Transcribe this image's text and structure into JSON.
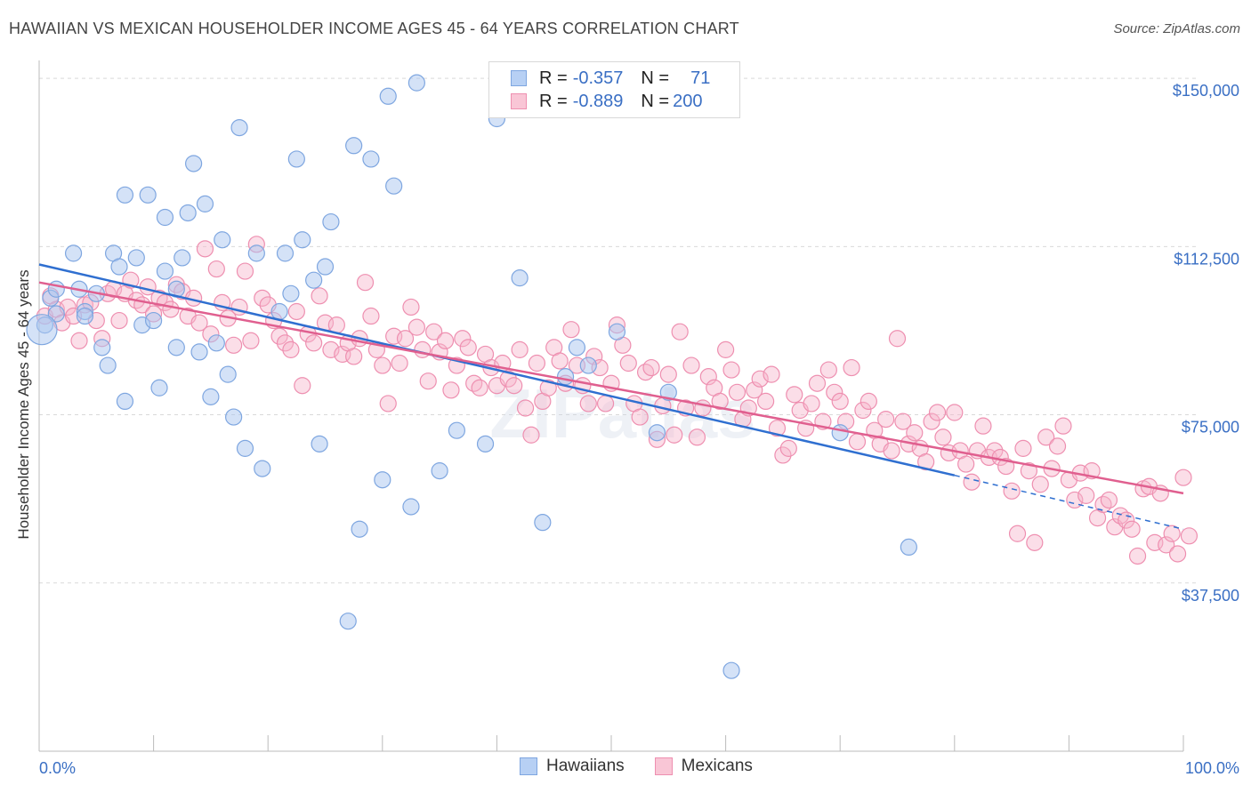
{
  "header": {
    "title": "HAWAIIAN VS MEXICAN HOUSEHOLDER INCOME AGES 45 - 64 YEARS CORRELATION CHART",
    "source": "Source: ZipAtlas.com"
  },
  "legend": {
    "hawaiians": {
      "r_label": "R = ",
      "r_value": "-0.357",
      "n_label": "N = ",
      "n_value": "71"
    },
    "mexicans": {
      "r_label": "R = ",
      "r_value": "-0.889",
      "n_label": "N = ",
      "n_value": "200"
    }
  },
  "watermark": "ZIPatlas",
  "colors": {
    "hawaiians_fill": "#a9c6f0",
    "hawaiians_stroke": "#7ea6e0",
    "hawaiians_line": "#2f6fd0",
    "mexicans_fill": "#f6b6cb",
    "mexicans_stroke": "#ee8fb0",
    "mexicans_line": "#e05f8f",
    "axis_label": "#3a6fc4",
    "grid": "#d9d9d9"
  },
  "chart_data": {
    "type": "scatter",
    "title": "HAWAIIAN VS MEXICAN HOUSEHOLDER INCOME AGES 45 - 64 YEARS CORRELATION CHART",
    "xlabel": "",
    "ylabel": "Householder Income Ages 45 - 64 years",
    "xlim": [
      0,
      100
    ],
    "ylim": [
      0,
      152000
    ],
    "x_tick_labels": [
      "0.0%",
      "100.0%"
    ],
    "y_ticks": [
      37500,
      75000,
      112500,
      150000
    ],
    "y_tick_labels": [
      "$37,500",
      "$75,000",
      "$112,500",
      "$150,000"
    ],
    "grid": true,
    "legend_position": "top-center",
    "series": [
      {
        "name": "Hawaiians",
        "r": -0.357,
        "n": 71,
        "trend": {
          "x": [
            0,
            80
          ],
          "y": [
            108500,
            61500
          ],
          "dashed_extension_to": [
            100,
            49500
          ]
        },
        "points": [
          [
            0.5,
            95000
          ],
          [
            1,
            101000
          ],
          [
            1.5,
            103000
          ],
          [
            1.5,
            97500
          ],
          [
            3,
            111000
          ],
          [
            3.5,
            103000
          ],
          [
            4,
            98000
          ],
          [
            4,
            97000
          ],
          [
            5,
            102000
          ],
          [
            5.5,
            90000
          ],
          [
            6,
            86000
          ],
          [
            6.5,
            111000
          ],
          [
            7,
            108000
          ],
          [
            7.5,
            124000
          ],
          [
            7.5,
            78000
          ],
          [
            8.5,
            110000
          ],
          [
            9,
            95000
          ],
          [
            9.5,
            124000
          ],
          [
            10,
            96000
          ],
          [
            10.5,
            81000
          ],
          [
            11,
            107000
          ],
          [
            11,
            119000
          ],
          [
            12,
            103000
          ],
          [
            12,
            90000
          ],
          [
            12.5,
            110000
          ],
          [
            13,
            120000
          ],
          [
            13.5,
            131000
          ],
          [
            14,
            89000
          ],
          [
            14.5,
            122000
          ],
          [
            15,
            79000
          ],
          [
            15.5,
            91000
          ],
          [
            16,
            114000
          ],
          [
            16.5,
            84000
          ],
          [
            17,
            74500
          ],
          [
            17.5,
            139000
          ],
          [
            18,
            67500
          ],
          [
            19,
            111000
          ],
          [
            19.5,
            63000
          ],
          [
            21,
            98000
          ],
          [
            21.5,
            111000
          ],
          [
            22,
            102000
          ],
          [
            22.5,
            132000
          ],
          [
            23,
            114000
          ],
          [
            24,
            105000
          ],
          [
            24.5,
            68500
          ],
          [
            25,
            108000
          ],
          [
            25.5,
            118000
          ],
          [
            27,
            29000
          ],
          [
            27.5,
            135000
          ],
          [
            28,
            49500
          ],
          [
            29,
            132000
          ],
          [
            30,
            60500
          ],
          [
            30.5,
            146000
          ],
          [
            31,
            126000
          ],
          [
            32.5,
            54500
          ],
          [
            33,
            149000
          ],
          [
            35,
            62500
          ],
          [
            36.5,
            71500
          ],
          [
            39,
            68500
          ],
          [
            40,
            141000
          ],
          [
            42,
            105500
          ],
          [
            44,
            51000
          ],
          [
            46,
            83500
          ],
          [
            47,
            90000
          ],
          [
            48,
            86000
          ],
          [
            50.5,
            93500
          ],
          [
            54,
            71000
          ],
          [
            55,
            80000
          ],
          [
            60.5,
            18000
          ],
          [
            70,
            71000
          ],
          [
            76,
            45500
          ]
        ]
      },
      {
        "name": "Mexicans",
        "r": -0.889,
        "n": 200,
        "trend": {
          "x": [
            0,
            100
          ],
          "y": [
            104500,
            57500
          ]
        },
        "points": [
          [
            0.5,
            97000
          ],
          [
            1,
            101500
          ],
          [
            1.5,
            98500
          ],
          [
            2,
            95500
          ],
          [
            2.5,
            99000
          ],
          [
            3,
            97000
          ],
          [
            3.5,
            91500
          ],
          [
            4,
            99500
          ],
          [
            4.5,
            100000
          ],
          [
            5,
            96000
          ],
          [
            5.5,
            92000
          ],
          [
            6,
            102000
          ],
          [
            6.5,
            103000
          ],
          [
            7,
            96000
          ],
          [
            7.5,
            102000
          ],
          [
            8,
            105000
          ],
          [
            8.5,
            100500
          ],
          [
            9,
            99500
          ],
          [
            9.5,
            103500
          ],
          [
            10,
            97500
          ],
          [
            10.5,
            101000
          ],
          [
            11,
            100000
          ],
          [
            11.5,
            98500
          ],
          [
            12,
            104000
          ],
          [
            12.5,
            102500
          ],
          [
            13,
            97000
          ],
          [
            13.5,
            101000
          ],
          [
            14,
            95500
          ],
          [
            14.5,
            112000
          ],
          [
            15,
            93000
          ],
          [
            15.5,
            107500
          ],
          [
            16,
            100000
          ],
          [
            16.5,
            96500
          ],
          [
            17,
            90500
          ],
          [
            17.5,
            99000
          ],
          [
            18,
            107000
          ],
          [
            18.5,
            91500
          ],
          [
            19,
            113000
          ],
          [
            19.5,
            101000
          ],
          [
            20,
            99500
          ],
          [
            20.5,
            96000
          ],
          [
            21,
            92500
          ],
          [
            21.5,
            91000
          ],
          [
            22,
            89500
          ],
          [
            22.5,
            98000
          ],
          [
            23,
            81500
          ],
          [
            23.5,
            93000
          ],
          [
            24,
            91000
          ],
          [
            24.5,
            101500
          ],
          [
            25,
            95500
          ],
          [
            25.5,
            89500
          ],
          [
            26,
            95000
          ],
          [
            26.5,
            88500
          ],
          [
            27,
            91000
          ],
          [
            27.5,
            88000
          ],
          [
            28,
            92000
          ],
          [
            28.5,
            104500
          ],
          [
            29,
            97000
          ],
          [
            29.5,
            89500
          ],
          [
            30,
            86000
          ],
          [
            30.5,
            77500
          ],
          [
            31,
            92500
          ],
          [
            31.5,
            86500
          ],
          [
            32,
            92000
          ],
          [
            32.5,
            99000
          ],
          [
            33,
            94500
          ],
          [
            33.5,
            89500
          ],
          [
            34,
            82500
          ],
          [
            34.5,
            93500
          ],
          [
            35,
            89000
          ],
          [
            35.5,
            91500
          ],
          [
            36,
            80500
          ],
          [
            36.5,
            86000
          ],
          [
            37,
            92000
          ],
          [
            37.5,
            90000
          ],
          [
            38,
            82000
          ],
          [
            38.5,
            81000
          ],
          [
            39,
            88500
          ],
          [
            39.5,
            85500
          ],
          [
            40,
            81500
          ],
          [
            40.5,
            86500
          ],
          [
            41,
            83000
          ],
          [
            41.5,
            81500
          ],
          [
            42,
            89500
          ],
          [
            42.5,
            76500
          ],
          [
            43,
            70500
          ],
          [
            43.5,
            86500
          ],
          [
            44,
            78000
          ],
          [
            44.5,
            81000
          ],
          [
            45,
            90000
          ],
          [
            45.5,
            87000
          ],
          [
            46,
            82000
          ],
          [
            46.5,
            94000
          ],
          [
            47,
            86000
          ],
          [
            47.5,
            81500
          ],
          [
            48,
            77500
          ],
          [
            48.5,
            88000
          ],
          [
            49,
            85500
          ],
          [
            49.5,
            77500
          ],
          [
            50,
            82000
          ],
          [
            50.5,
            95000
          ],
          [
            51,
            90500
          ],
          [
            51.5,
            86500
          ],
          [
            52,
            77500
          ],
          [
            52.5,
            74500
          ],
          [
            53,
            84500
          ],
          [
            53.5,
            85500
          ],
          [
            54,
            69500
          ],
          [
            54.5,
            77000
          ],
          [
            55,
            84000
          ],
          [
            55.5,
            70500
          ],
          [
            56,
            93500
          ],
          [
            56.5,
            76500
          ],
          [
            57,
            86000
          ],
          [
            57.5,
            70000
          ],
          [
            58,
            76500
          ],
          [
            58.5,
            83500
          ],
          [
            59,
            81000
          ],
          [
            59.5,
            78000
          ],
          [
            60,
            89500
          ],
          [
            60.5,
            85000
          ],
          [
            61,
            80000
          ],
          [
            61.5,
            74000
          ],
          [
            62,
            76500
          ],
          [
            62.5,
            80500
          ],
          [
            63,
            83000
          ],
          [
            63.5,
            78000
          ],
          [
            64,
            84000
          ],
          [
            64.5,
            72000
          ],
          [
            65,
            66000
          ],
          [
            65.5,
            67500
          ],
          [
            66,
            79500
          ],
          [
            66.5,
            76000
          ],
          [
            67,
            72000
          ],
          [
            67.5,
            77500
          ],
          [
            68,
            82000
          ],
          [
            68.5,
            73500
          ],
          [
            69,
            85000
          ],
          [
            69.5,
            80000
          ],
          [
            70,
            78000
          ],
          [
            70.5,
            73500
          ],
          [
            71,
            85500
          ],
          [
            71.5,
            69000
          ],
          [
            72,
            76000
          ],
          [
            72.5,
            78000
          ],
          [
            73,
            71500
          ],
          [
            73.5,
            68500
          ],
          [
            74,
            74000
          ],
          [
            74.5,
            67000
          ],
          [
            75,
            92000
          ],
          [
            75.5,
            73500
          ],
          [
            76,
            68500
          ],
          [
            76.5,
            71000
          ],
          [
            77,
            67500
          ],
          [
            77.5,
            64500
          ],
          [
            78,
            73500
          ],
          [
            78.5,
            75500
          ],
          [
            79,
            70000
          ],
          [
            79.5,
            66500
          ],
          [
            80,
            75500
          ],
          [
            80.5,
            67000
          ],
          [
            81,
            64000
          ],
          [
            81.5,
            60000
          ],
          [
            82,
            67000
          ],
          [
            82.5,
            72500
          ],
          [
            83,
            65500
          ],
          [
            83.5,
            67000
          ],
          [
            84,
            65500
          ],
          [
            84.5,
            63500
          ],
          [
            85,
            58000
          ],
          [
            85.5,
            48500
          ],
          [
            86,
            67500
          ],
          [
            86.5,
            62500
          ],
          [
            87,
            46500
          ],
          [
            87.5,
            59500
          ],
          [
            88,
            70000
          ],
          [
            88.5,
            63000
          ],
          [
            89,
            68000
          ],
          [
            89.5,
            72500
          ],
          [
            90,
            60500
          ],
          [
            90.5,
            56000
          ],
          [
            91,
            62000
          ],
          [
            91.5,
            57000
          ],
          [
            92,
            62500
          ],
          [
            92.5,
            52000
          ],
          [
            93,
            55000
          ],
          [
            93.5,
            56000
          ],
          [
            94,
            50000
          ],
          [
            94.5,
            52500
          ],
          [
            95,
            51500
          ],
          [
            95.5,
            49500
          ],
          [
            96,
            43500
          ],
          [
            96.5,
            58500
          ],
          [
            97,
            59000
          ],
          [
            97.5,
            46500
          ],
          [
            98,
            57500
          ],
          [
            98.5,
            46000
          ],
          [
            99,
            48500
          ],
          [
            99.5,
            44000
          ],
          [
            100,
            61000
          ],
          [
            100.5,
            48000
          ]
        ]
      }
    ]
  }
}
